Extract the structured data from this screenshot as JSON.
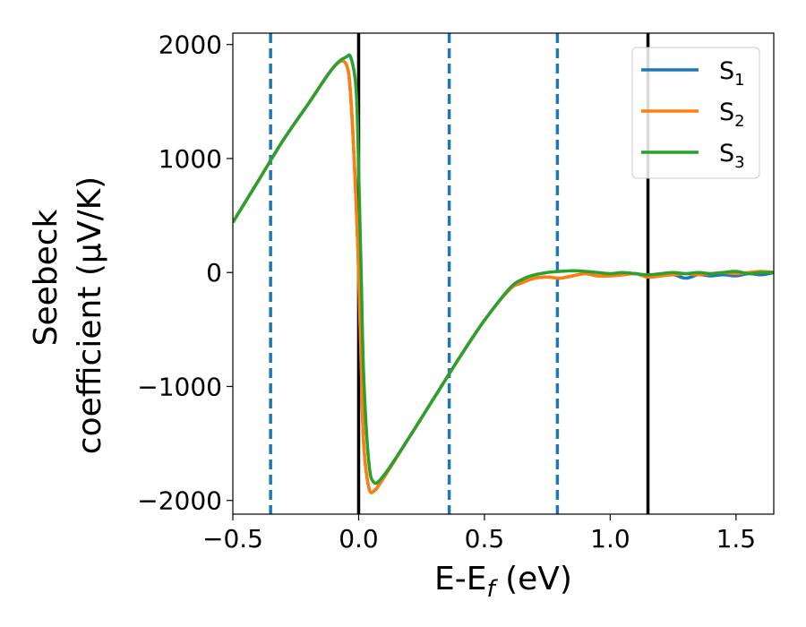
{
  "chart_data": {
    "type": "line",
    "xlabel": "E-Ef (eV)",
    "xlabel_main": "E-E",
    "xlabel_sub": "f",
    "xlabel_unit": " (eV)",
    "ylabel_line1": "Seebeck",
    "ylabel_line2": "coefficient  (μV/K)",
    "xlim": [
      -0.5,
      1.65
    ],
    "ylim": [
      -2120,
      2100
    ],
    "xticks": [
      -0.5,
      0.0,
      0.5,
      1.0,
      1.5
    ],
    "xtick_labels": [
      "−0.5",
      "0.0",
      "0.5",
      "1.0",
      "1.5"
    ],
    "yticks": [
      2000,
      1000,
      0,
      -1000,
      -2000
    ],
    "ytick_labels": [
      "2000",
      "1000",
      "0",
      "−1000",
      "−2000"
    ],
    "vlines_solid": [
      0.0,
      1.15
    ],
    "vlines_dashed": [
      -0.35,
      0.36,
      0.79
    ],
    "legend_position": "top-right",
    "colors": {
      "S1": "#1f77b4",
      "S2": "#ff7f0e",
      "S3": "#2ca02c",
      "solid_line": "#000000",
      "dashed_line": "#1f77b4"
    },
    "series": [
      {
        "name": "S1",
        "label_main": "S",
        "label_sub": "1",
        "color": "#1f77b4",
        "x": [
          -0.5,
          -0.4,
          -0.3,
          -0.2,
          -0.1,
          -0.05,
          -0.03,
          -0.01,
          0.0,
          0.01,
          0.02,
          0.04,
          0.06,
          0.1,
          0.2,
          0.3,
          0.4,
          0.5,
          0.6,
          0.65,
          0.7,
          0.75,
          0.8,
          0.85,
          0.9,
          0.95,
          1.0,
          1.05,
          1.1,
          1.15,
          1.2,
          1.25,
          1.3,
          1.35,
          1.4,
          1.45,
          1.5,
          1.55,
          1.6,
          1.65
        ],
        "y": [
          440,
          800,
          1160,
          1480,
          1800,
          1830,
          1500,
          600,
          0,
          -800,
          -1500,
          -1880,
          -1920,
          -1800,
          -1450,
          -1100,
          -750,
          -420,
          -150,
          -90,
          -50,
          -40,
          -50,
          -30,
          -10,
          -30,
          -30,
          -20,
          -10,
          -40,
          -30,
          -20,
          -50,
          -20,
          -30,
          -20,
          -30,
          -10,
          -20,
          0
        ]
      },
      {
        "name": "S2",
        "label_main": "S",
        "label_sub": "2",
        "color": "#ff7f0e",
        "x": [
          -0.5,
          -0.4,
          -0.3,
          -0.2,
          -0.1,
          -0.05,
          -0.03,
          -0.01,
          0.0,
          0.01,
          0.02,
          0.04,
          0.06,
          0.1,
          0.2,
          0.3,
          0.4,
          0.5,
          0.6,
          0.65,
          0.7,
          0.75,
          0.8,
          0.85,
          0.9,
          0.95,
          1.0,
          1.05,
          1.1,
          1.15,
          1.2,
          1.25,
          1.3,
          1.35,
          1.4,
          1.45,
          1.5,
          1.55,
          1.6,
          1.65
        ],
        "y": [
          440,
          800,
          1160,
          1480,
          1800,
          1830,
          1500,
          600,
          0,
          -800,
          -1500,
          -1880,
          -1920,
          -1800,
          -1450,
          -1100,
          -750,
          -420,
          -150,
          -90,
          -50,
          -40,
          -50,
          -30,
          -10,
          -30,
          -30,
          -20,
          -10,
          -40,
          -30,
          -20,
          -10,
          -20,
          -10,
          0,
          -10,
          0,
          10,
          0
        ]
      },
      {
        "name": "S3",
        "label_main": "S",
        "label_sub": "3",
        "color": "#2ca02c",
        "x": [
          -0.5,
          -0.4,
          -0.3,
          -0.2,
          -0.1,
          -0.05,
          -0.03,
          -0.01,
          0.0,
          0.01,
          0.02,
          0.04,
          0.06,
          0.1,
          0.2,
          0.3,
          0.4,
          0.5,
          0.6,
          0.65,
          0.7,
          0.75,
          0.8,
          0.85,
          0.9,
          0.95,
          1.0,
          1.05,
          1.1,
          1.15,
          1.2,
          1.25,
          1.3,
          1.35,
          1.4,
          1.45,
          1.5,
          1.55,
          1.6,
          1.65
        ],
        "y": [
          440,
          800,
          1160,
          1480,
          1800,
          1890,
          1880,
          1600,
          900,
          0,
          -900,
          -1650,
          -1840,
          -1780,
          -1450,
          -1100,
          -750,
          -420,
          -140,
          -60,
          -20,
          0,
          10,
          15,
          10,
          0,
          -10,
          0,
          -10,
          -20,
          -10,
          0,
          -10,
          0,
          -10,
          0,
          10,
          -10,
          0,
          0
        ]
      }
    ]
  }
}
